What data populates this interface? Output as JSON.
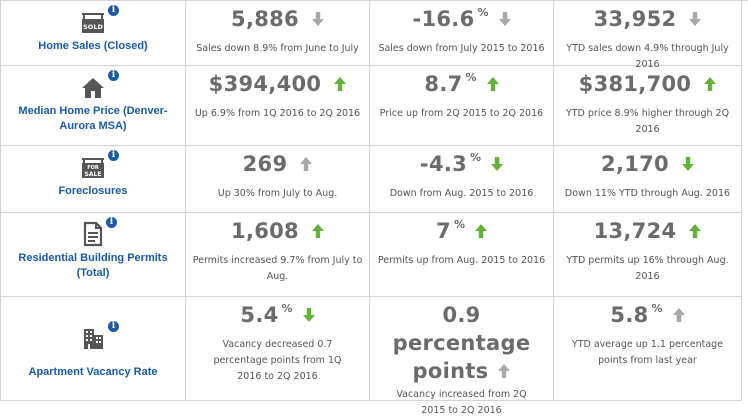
{
  "colors": {
    "up": "#62b23a",
    "down_gray": "#a8a8a8",
    "label_blue": "#1a5aa6",
    "border": "#d4d4d4"
  },
  "rows": [
    {
      "label": "Home Sales (Closed)",
      "icon": "sold-sign-icon",
      "cells": [
        {
          "value": "5,886",
          "pct": "",
          "trend": "down-gray",
          "desc": "Sales down 8.9% from June to July"
        },
        {
          "value": "-16.6",
          "pct": "%",
          "trend": "down-gray",
          "desc": "Sales down from July 2015 to 2016"
        },
        {
          "value": "33,952",
          "pct": "",
          "trend": "down-gray",
          "desc": "YTD sales down 4.9% through July 2016"
        }
      ]
    },
    {
      "label": "Median Home Price (Denver-Aurora MSA)",
      "icon": "house-icon",
      "cells": [
        {
          "value": "$394,400",
          "pct": "",
          "trend": "up-green",
          "desc": "Up 6.9% from 1Q 2016 to 2Q 2016"
        },
        {
          "value": "8.7",
          "pct": "%",
          "trend": "up-green",
          "desc": "Price up from 2Q 2015 to 2Q 2016"
        },
        {
          "value": "$381,700",
          "pct": "",
          "trend": "up-green",
          "desc": "YTD price 8.9% higher through 2Q 2016"
        }
      ]
    },
    {
      "label": "Foreclosures",
      "icon": "for-sale-sign-icon",
      "cells": [
        {
          "value": "269",
          "pct": "",
          "trend": "up-gray",
          "desc": "Up 30% from July to Aug."
        },
        {
          "value": "-4.3",
          "pct": "%",
          "trend": "down-green",
          "desc": "Down from Aug. 2015 to 2016"
        },
        {
          "value": "2,170",
          "pct": "",
          "trend": "down-green",
          "desc": "Down 11% YTD through Aug. 2016"
        }
      ]
    },
    {
      "label": "Residential Building Permits (Total)",
      "icon": "document-icon",
      "cells": [
        {
          "value": "1,608",
          "pct": "",
          "trend": "up-green",
          "desc": "Permits increased 9.7% from July to Aug."
        },
        {
          "value": "7",
          "pct": "%",
          "trend": "up-green",
          "desc": "Permits up from Aug. 2015 to 2016"
        },
        {
          "value": "13,724",
          "pct": "",
          "trend": "up-green",
          "desc": "YTD permits up 16% through Aug. 2016"
        }
      ]
    },
    {
      "label": "Apartment Vacancy Rate",
      "icon": "apartment-building-icon",
      "cells": [
        {
          "value": "5.4",
          "pct": "%",
          "trend": "down-green",
          "desc": "Vacancy decreased 0.7 percentage points from 1Q 2016 to 2Q 2016"
        },
        {
          "value": "0.9 percentage points",
          "pct": "",
          "trend": "up-gray",
          "desc": "Vacancy increased from 2Q 2015 to 2Q 2016"
        },
        {
          "value": "5.8",
          "pct": "%",
          "trend": "up-gray",
          "desc": "YTD average up 1.1 percentage points from last year"
        }
      ]
    }
  ]
}
